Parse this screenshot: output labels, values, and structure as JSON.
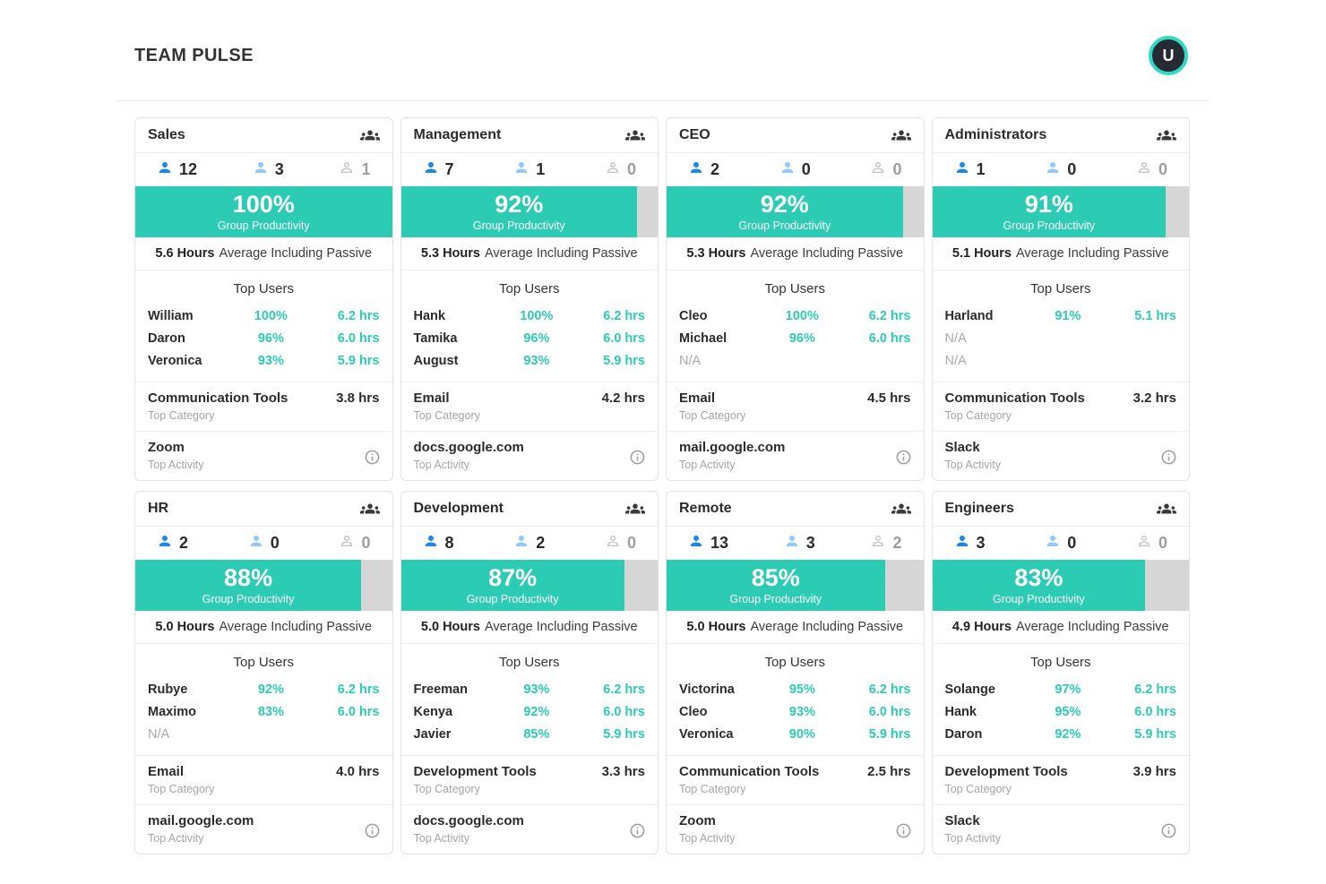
{
  "header": {
    "title": "TEAM PULSE",
    "avatar_initial": "U"
  },
  "labels": {
    "group_productivity": "Group Productivity",
    "hours_suffix": "Average Including Passive",
    "top_users": "Top Users",
    "top_category": "Top Category",
    "top_activity": "Top Activity"
  },
  "colors": {
    "accent_teal": "#2cccb4",
    "active_blue": "#1e88e5",
    "passive_blue": "#90caf9",
    "offline_gray": "#c4c4c4",
    "bar_track_gray": "#d6d6d6"
  },
  "icons": {
    "card_corner": "groups-icon",
    "active": "person-filled-blue-icon",
    "passive": "person-filled-lightblue-icon",
    "offline": "person-outline-gray-icon",
    "activity": "info-icon"
  },
  "teams": [
    {
      "name": "Sales",
      "counts": {
        "active": "12",
        "passive": "3",
        "offline": "1"
      },
      "productivity_percent": 100,
      "productivity_label": "100%",
      "avg_hours": "5.6 Hours",
      "top_users": [
        {
          "name": "William",
          "productivity": "100%",
          "hours": "6.2 hrs"
        },
        {
          "name": "Daron",
          "productivity": "96%",
          "hours": "6.0 hrs"
        },
        {
          "name": "Veronica",
          "productivity": "93%",
          "hours": "5.9 hrs"
        }
      ],
      "top_category": {
        "name": "Communication Tools",
        "hours": "3.8 hrs"
      },
      "top_activity": {
        "name": "Zoom"
      }
    },
    {
      "name": "Management",
      "counts": {
        "active": "7",
        "passive": "1",
        "offline": "0"
      },
      "productivity_percent": 92,
      "productivity_label": "92%",
      "avg_hours": "5.3 Hours",
      "top_users": [
        {
          "name": "Hank",
          "productivity": "100%",
          "hours": "6.2 hrs"
        },
        {
          "name": "Tamika",
          "productivity": "96%",
          "hours": "6.0 hrs"
        },
        {
          "name": "August",
          "productivity": "93%",
          "hours": "5.9 hrs"
        }
      ],
      "top_category": {
        "name": "Email",
        "hours": "4.2 hrs"
      },
      "top_activity": {
        "name": "docs.google.com"
      }
    },
    {
      "name": "CEO",
      "counts": {
        "active": "2",
        "passive": "0",
        "offline": "0"
      },
      "productivity_percent": 92,
      "productivity_label": "92%",
      "avg_hours": "5.3 Hours",
      "top_users": [
        {
          "name": "Cleo",
          "productivity": "100%",
          "hours": "6.2 hrs"
        },
        {
          "name": "Michael",
          "productivity": "96%",
          "hours": "6.0 hrs"
        },
        {
          "name": "N/A",
          "productivity": "",
          "hours": ""
        }
      ],
      "top_category": {
        "name": "Email",
        "hours": "4.5 hrs"
      },
      "top_activity": {
        "name": "mail.google.com"
      }
    },
    {
      "name": "Administrators",
      "counts": {
        "active": "1",
        "passive": "0",
        "offline": "0"
      },
      "productivity_percent": 91,
      "productivity_label": "91%",
      "avg_hours": "5.1 Hours",
      "top_users": [
        {
          "name": "Harland",
          "productivity": "91%",
          "hours": "5.1 hrs"
        },
        {
          "name": "N/A",
          "productivity": "",
          "hours": ""
        },
        {
          "name": "N/A",
          "productivity": "",
          "hours": ""
        }
      ],
      "top_category": {
        "name": "Communication Tools",
        "hours": "3.2 hrs"
      },
      "top_activity": {
        "name": "Slack"
      }
    },
    {
      "name": "HR",
      "counts": {
        "active": "2",
        "passive": "0",
        "offline": "0"
      },
      "productivity_percent": 88,
      "productivity_label": "88%",
      "avg_hours": "5.0 Hours",
      "top_users": [
        {
          "name": "Rubye",
          "productivity": "92%",
          "hours": "6.2 hrs"
        },
        {
          "name": "Maximo",
          "productivity": "83%",
          "hours": "6.0 hrs"
        },
        {
          "name": "N/A",
          "productivity": "",
          "hours": ""
        }
      ],
      "top_category": {
        "name": "Email",
        "hours": "4.0 hrs"
      },
      "top_activity": {
        "name": "mail.google.com"
      }
    },
    {
      "name": "Development",
      "counts": {
        "active": "8",
        "passive": "2",
        "offline": "0"
      },
      "productivity_percent": 87,
      "productivity_label": "87%",
      "avg_hours": "5.0 Hours",
      "top_users": [
        {
          "name": "Freeman",
          "productivity": "93%",
          "hours": "6.2 hrs"
        },
        {
          "name": "Kenya",
          "productivity": "92%",
          "hours": "6.0 hrs"
        },
        {
          "name": "Javier",
          "productivity": "85%",
          "hours": "5.9 hrs"
        }
      ],
      "top_category": {
        "name": "Development Tools",
        "hours": "3.3 hrs"
      },
      "top_activity": {
        "name": "docs.google.com"
      }
    },
    {
      "name": "Remote",
      "counts": {
        "active": "13",
        "passive": "3",
        "offline": "2"
      },
      "productivity_percent": 85,
      "productivity_label": "85%",
      "avg_hours": "5.0 Hours",
      "top_users": [
        {
          "name": "Victorina",
          "productivity": "95%",
          "hours": "6.2 hrs"
        },
        {
          "name": "Cleo",
          "productivity": "93%",
          "hours": "6.0 hrs"
        },
        {
          "name": "Veronica",
          "productivity": "90%",
          "hours": "5.9 hrs"
        }
      ],
      "top_category": {
        "name": "Communication Tools",
        "hours": "2.5 hrs"
      },
      "top_activity": {
        "name": "Zoom"
      }
    },
    {
      "name": "Engineers",
      "counts": {
        "active": "3",
        "passive": "0",
        "offline": "0"
      },
      "productivity_percent": 83,
      "productivity_label": "83%",
      "avg_hours": "4.9 Hours",
      "top_users": [
        {
          "name": "Solange",
          "productivity": "97%",
          "hours": "6.2 hrs"
        },
        {
          "name": "Hank",
          "productivity": "95%",
          "hours": "6.0 hrs"
        },
        {
          "name": "Daron",
          "productivity": "92%",
          "hours": "5.9 hrs"
        }
      ],
      "top_category": {
        "name": "Development Tools",
        "hours": "3.9 hrs"
      },
      "top_activity": {
        "name": "Slack"
      }
    }
  ]
}
